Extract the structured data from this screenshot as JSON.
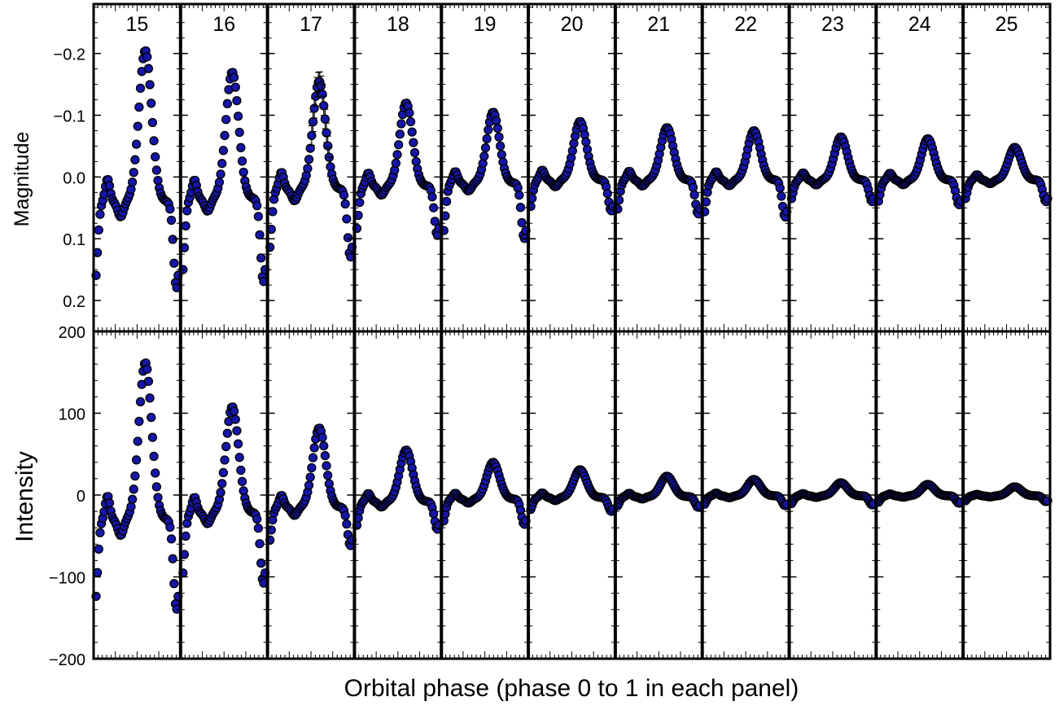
{
  "chart_data": {
    "type": "scatter",
    "xlabel": "Orbital phase (phase 0 to 1 in each panel)",
    "panel_labels": [
      "15",
      "16",
      "17",
      "18",
      "19",
      "20",
      "21",
      "22",
      "23",
      "24",
      "25"
    ],
    "top": {
      "ylabel": "Magnitude",
      "ylim": [
        -0.28,
        0.25
      ],
      "yticks": [
        -0.2,
        -0.1,
        0.0,
        0.1,
        0.2
      ],
      "ytick_labels": [
        "−0.2",
        "−0.1",
        "0.0",
        "0.1",
        "0.2"
      ],
      "inverted": true,
      "error_bars": true
    },
    "bottom": {
      "ylabel": "Intensity",
      "ylim": [
        -200,
        200
      ],
      "yticks": [
        -200,
        -100,
        0,
        100,
        200
      ],
      "ytick_labels": [
        "−200",
        "−100",
        "0",
        "100",
        "200"
      ]
    },
    "marker_color": "#1616a8",
    "marker_edge": "#000000",
    "series": [
      {
        "panel": "15",
        "mag_peak": -0.205,
        "mag_min": 0.18,
        "mag_base": 0.04,
        "int_peak": 162,
        "int_min": -140,
        "int_base": -30
      },
      {
        "panel": "16",
        "mag_peak": -0.17,
        "mag_min": 0.17,
        "mag_base": 0.035,
        "int_peak": 108,
        "int_min": -108,
        "int_base": -22
      },
      {
        "panel": "17",
        "mag_peak": -0.155,
        "mag_min": 0.13,
        "mag_base": 0.02,
        "int_peak": 82,
        "int_min": -62,
        "int_base": -15
      },
      {
        "panel": "18",
        "mag_peak": -0.12,
        "mag_min": 0.095,
        "mag_base": 0.015,
        "int_peak": 55,
        "int_min": -42,
        "int_base": -8
      },
      {
        "panel": "19",
        "mag_peak": -0.105,
        "mag_min": 0.1,
        "mag_base": 0.01,
        "int_peak": 40,
        "int_min": -36,
        "int_base": -5
      },
      {
        "panel": "20",
        "mag_peak": -0.09,
        "mag_min": 0.055,
        "mag_base": 0.005,
        "int_peak": 31,
        "int_min": -20,
        "int_base": -3
      },
      {
        "panel": "21",
        "mag_peak": -0.08,
        "mag_min": 0.06,
        "mag_base": 0.005,
        "int_peak": 23,
        "int_min": -15,
        "int_base": -2
      },
      {
        "panel": "22",
        "mag_peak": -0.075,
        "mag_min": 0.065,
        "mag_base": 0.005,
        "int_peak": 19,
        "int_min": -13,
        "int_base": -1
      },
      {
        "panel": "23",
        "mag_peak": -0.065,
        "mag_min": 0.04,
        "mag_base": 0.005,
        "int_peak": 15,
        "int_min": -12,
        "int_base": -1
      },
      {
        "panel": "24",
        "mag_peak": -0.062,
        "mag_min": 0.045,
        "mag_base": 0.005,
        "int_peak": 13,
        "int_min": -10,
        "int_base": -1
      },
      {
        "panel": "25",
        "mag_peak": -0.048,
        "mag_min": 0.04,
        "mag_base": 0.005,
        "int_peak": 10,
        "int_min": -8,
        "int_base": -1
      }
    ]
  }
}
